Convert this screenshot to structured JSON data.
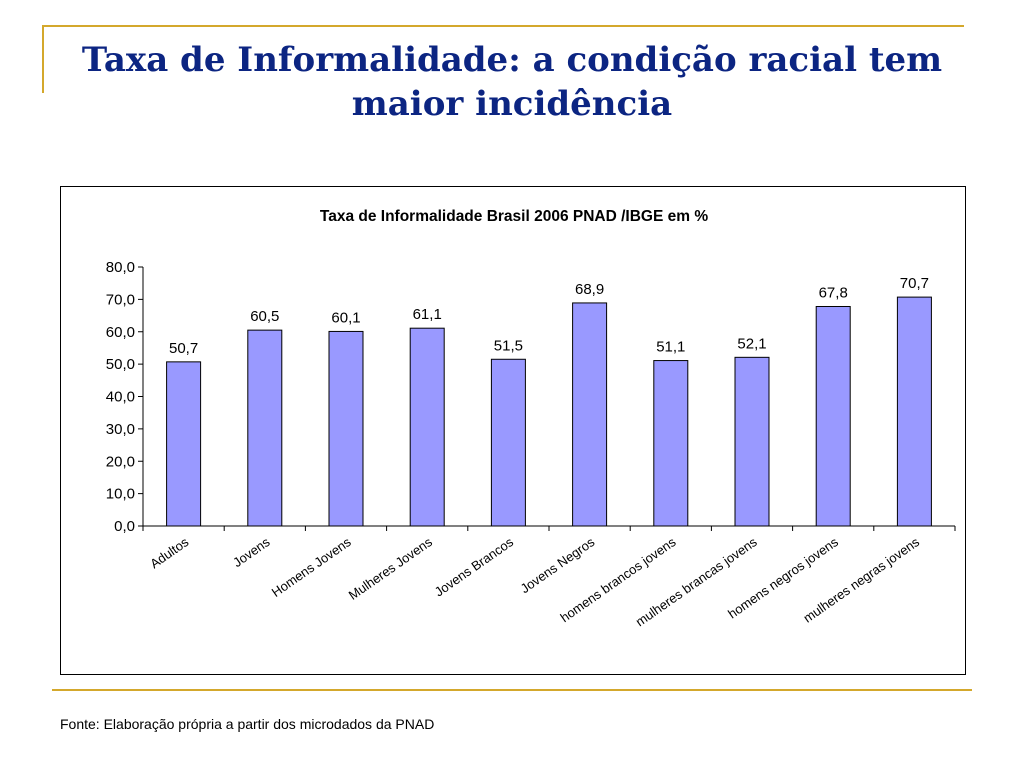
{
  "slide": {
    "title": "Taxa de Informalidade: a condição racial tem maior incidência",
    "source": "Fonte: Elaboração própria a partir dos microdados da PNAD"
  },
  "colors": {
    "title": "#0c2582",
    "accent_line": "#d4a82c",
    "bar_fill": "#9999ff",
    "bar_stroke": "#000000"
  },
  "chart_data": {
    "type": "bar",
    "title": "Taxa de Informalidade Brasil 2006 PNAD /IBGE em %",
    "xlabel": "",
    "ylabel": "",
    "categories": [
      "Adultos",
      "Jovens",
      "Homens Jovens",
      "Mulheres Jovens",
      "Jovens Brancos",
      "Jovens Negros",
      "homens brancos jovens",
      "mulheres brancas jovens",
      "homens negros jovens",
      "mulheres negras jovens"
    ],
    "values": [
      50.7,
      60.5,
      60.1,
      61.1,
      51.5,
      68.9,
      51.1,
      52.1,
      67.8,
      70.7
    ],
    "value_labels": [
      "50,7",
      "60,5",
      "60,1",
      "61,1",
      "51,5",
      "68,9",
      "51,1",
      "52,1",
      "67,8",
      "70,7"
    ],
    "ylim": [
      0,
      80
    ],
    "yticks": [
      0,
      10,
      20,
      30,
      40,
      50,
      60,
      70,
      80
    ],
    "ytick_labels": [
      "0,0",
      "10,0",
      "20,0",
      "30,0",
      "40,0",
      "50,0",
      "60,0",
      "70,0",
      "80,0"
    ],
    "grid": false,
    "legend": "none"
  }
}
